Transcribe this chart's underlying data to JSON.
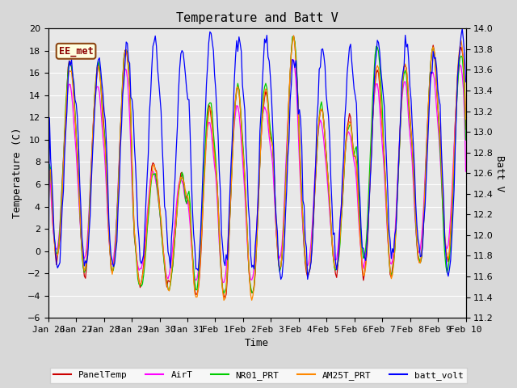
{
  "title": "Temperature and Batt V",
  "xlabel": "Time",
  "ylabel_left": "Temperature (C)",
  "ylabel_right": "Batt V",
  "ylim_left": [
    -6,
    20
  ],
  "ylim_right": [
    11.2,
    14.0
  ],
  "yticks_left": [
    -6,
    -4,
    -2,
    0,
    2,
    4,
    6,
    8,
    10,
    12,
    14,
    16,
    18,
    20
  ],
  "yticks_right": [
    11.2,
    11.4,
    11.6,
    11.8,
    12.0,
    12.2,
    12.4,
    12.6,
    12.8,
    13.0,
    13.2,
    13.4,
    13.6,
    13.8,
    14.0
  ],
  "xtick_labels": [
    "Jan 26",
    "Jan 27",
    "Jan 28",
    "Jan 29",
    "Jan 30",
    "Jan 31",
    "Feb 1",
    "Feb 2",
    "Feb 3",
    "Feb 4",
    "Feb 5",
    "Feb 6",
    "Feb 7",
    "Feb 8",
    "Feb 9",
    "Feb 10"
  ],
  "legend_entries": [
    "PanelTemp",
    "AirT",
    "NR01_PRT",
    "AM25T_PRT",
    "batt_volt"
  ],
  "legend_colors": [
    "#cc0000",
    "#ff00ff",
    "#00cc00",
    "#ff8800",
    "#0000ff"
  ],
  "annotation_text": "EE_met",
  "bg_color": "#e8e8e8",
  "grid_color": "#ffffff",
  "title_fontsize": 11,
  "label_fontsize": 9,
  "tick_fontsize": 8,
  "fig_width": 6.4,
  "fig_height": 4.8,
  "dpi": 100
}
